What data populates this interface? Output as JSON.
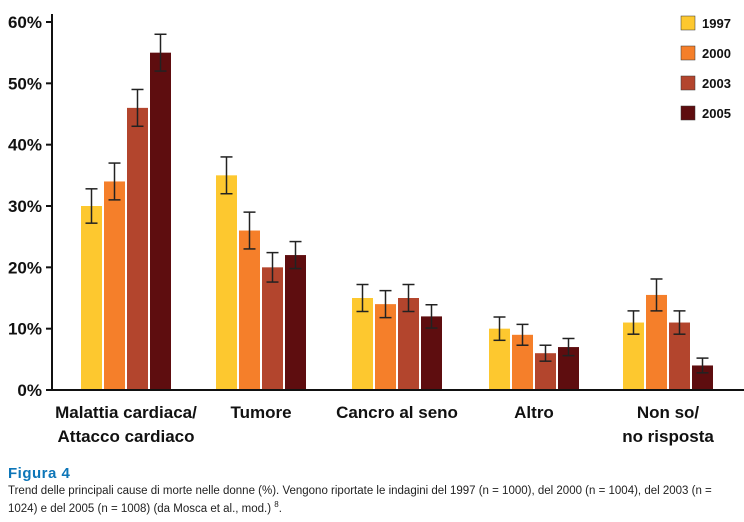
{
  "chart_data": {
    "type": "bar",
    "categories": [
      [
        "Malattia cardiaca/",
        "Attacco cardiaco"
      ],
      [
        "Tumore"
      ],
      [
        "Cancro al seno"
      ],
      [
        "Altro"
      ],
      [
        "Non so/",
        "no risposta"
      ]
    ],
    "series": [
      {
        "name": "1997",
        "color": "#fdc82f",
        "values": [
          30,
          35,
          15,
          10,
          11
        ],
        "errors": [
          2.8,
          3.0,
          2.2,
          1.9,
          1.9
        ]
      },
      {
        "name": "2000",
        "color": "#f57f2a",
        "values": [
          34,
          26,
          14,
          9,
          15.5
        ],
        "errors": [
          3.0,
          3.0,
          2.2,
          1.7,
          2.6
        ]
      },
      {
        "name": "2003",
        "color": "#b3452d",
        "values": [
          46,
          20,
          15,
          6,
          11
        ],
        "errors": [
          3.0,
          2.4,
          2.2,
          1.3,
          1.9
        ]
      },
      {
        "name": "2005",
        "color": "#5e0d0f",
        "values": [
          55,
          22,
          12,
          7,
          4
        ],
        "errors": [
          3.0,
          2.2,
          1.9,
          1.4,
          1.2
        ]
      }
    ],
    "y_ticks": [
      "0%",
      "10%",
      "20%",
      "30%",
      "40%",
      "50%",
      "60%"
    ],
    "ylim": [
      0,
      60
    ],
    "legend_position": "top-right",
    "grid": false
  },
  "caption": {
    "title": "Figura 4",
    "text": "Trend delle principali cause di morte nelle donne (%). Vengono riportate le indagini del 1997 (n = 1000), del 2000 (n = 1004), del 2003 (n = 1024) e del 2005 (n = 1008) (da Mosca et al., mod.)",
    "ref": "8",
    "end": "."
  }
}
